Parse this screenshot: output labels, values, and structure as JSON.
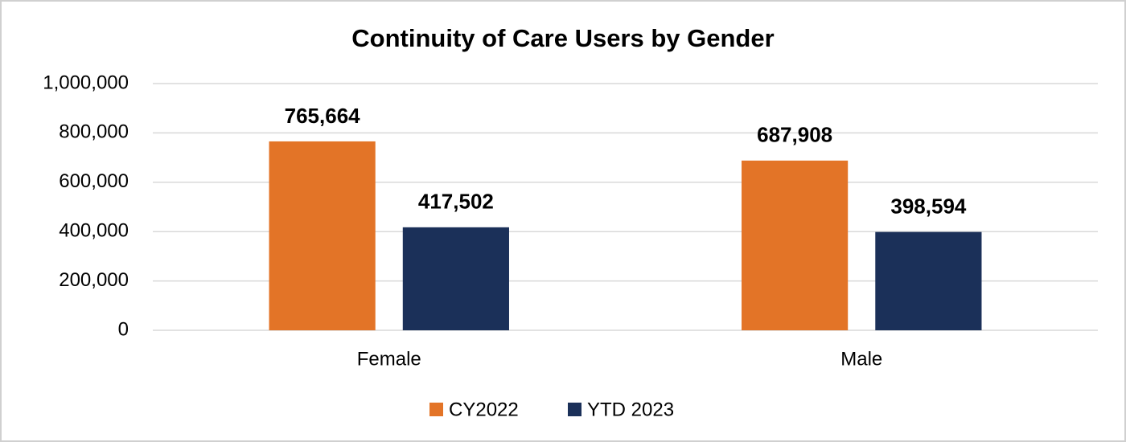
{
  "chart_data": {
    "type": "bar",
    "title": "Continuity of Care Users by Gender",
    "categories": [
      "Female",
      "Male"
    ],
    "series": [
      {
        "name": "CY2022",
        "color": "#E37427",
        "values": [
          765664,
          687908
        ],
        "value_labels": [
          "765,664",
          "687,908"
        ]
      },
      {
        "name": "YTD 2023",
        "color": "#1B3059",
        "values": [
          417502,
          398594
        ],
        "value_labels": [
          "417,502",
          "398,594"
        ]
      }
    ],
    "ylim": [
      0,
      1000000
    ],
    "yticks": [
      0,
      {
        "value": 200000,
        "label": "200,000"
      },
      {
        "value": 400000,
        "label": "400,000"
      },
      {
        "value": 600000,
        "label": "600,000"
      },
      {
        "value": 800000,
        "label": "800,000"
      },
      {
        "value": 1000000,
        "label": "1,000,000"
      }
    ],
    "grid": true,
    "legend": "bottom"
  }
}
